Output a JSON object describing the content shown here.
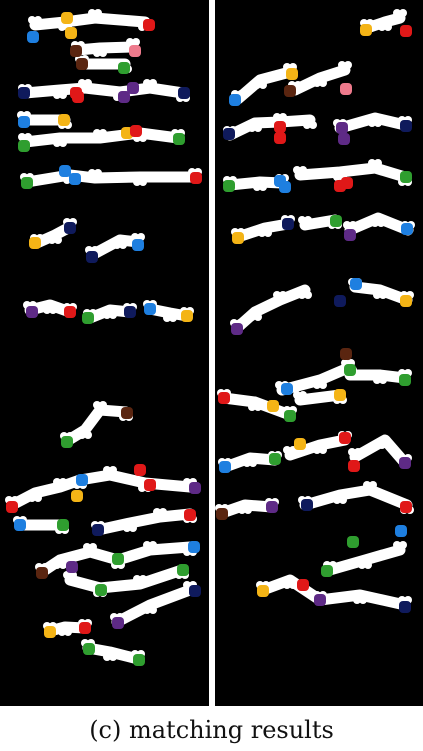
{
  "caption": "(c) matching results",
  "colors": {
    "background": "#000000",
    "blob": "#ffffff",
    "separator": "#ffffff",
    "markers": {
      "blue": "#1e7fe0",
      "orange": "#f4b416",
      "red": "#e01818",
      "green": "#2f9e2f",
      "navy": "#0f1a5c",
      "purple": "#5e2a86",
      "brown": "#5a2510",
      "pink": "#ee7a8c"
    }
  },
  "panels": [
    {
      "name": "left-panel",
      "blobs": [
        [
          [
            35,
            25
          ],
          [
            65,
            22
          ],
          [
            95,
            18
          ],
          [
            145,
            22
          ]
        ],
        [
          [
            78,
            50
          ],
          [
            100,
            48
          ],
          [
            133,
            47
          ]
        ],
        [
          [
            82,
            64
          ],
          [
            125,
            64
          ]
        ],
        [
          [
            25,
            93
          ],
          [
            60,
            90
          ],
          [
            85,
            88
          ],
          [
            120,
            92
          ],
          [
            150,
            88
          ],
          [
            183,
            93
          ]
        ],
        [
          [
            24,
            120
          ],
          [
            65,
            120
          ]
        ],
        [
          [
            25,
            142
          ],
          [
            60,
            138
          ],
          [
            100,
            138
          ],
          [
            140,
            133
          ],
          [
            178,
            138
          ]
        ],
        [
          [
            27,
            182
          ],
          [
            70,
            175
          ],
          [
            95,
            178
          ],
          [
            140,
            177
          ],
          [
            195,
            177
          ]
        ],
        [
          [
            37,
            243
          ],
          [
            55,
            235
          ],
          [
            70,
            227
          ]
        ],
        [
          [
            92,
            255
          ],
          [
            120,
            240
          ],
          [
            138,
            242
          ]
        ],
        [
          [
            30,
            310
          ],
          [
            50,
            305
          ],
          [
            70,
            312
          ]
        ],
        [
          [
            90,
            318
          ],
          [
            110,
            310
          ],
          [
            130,
            312
          ]
        ],
        [
          [
            150,
            309
          ],
          [
            170,
            313
          ],
          [
            187,
            316
          ]
        ],
        [
          [
            67,
            441
          ],
          [
            85,
            430
          ],
          [
            100,
            410
          ],
          [
            126,
            412
          ]
        ],
        [
          [
            12,
            505
          ],
          [
            35,
            493
          ],
          [
            60,
            487
          ],
          [
            80,
            480
          ],
          [
            110,
            475
          ],
          [
            145,
            483
          ],
          [
            190,
            487
          ]
        ],
        [
          [
            20,
            525
          ],
          [
            62,
            525
          ]
        ],
        [
          [
            98,
            530
          ],
          [
            130,
            523
          ],
          [
            160,
            517
          ],
          [
            190,
            514
          ]
        ],
        [
          [
            42,
            572
          ],
          [
            60,
            560
          ],
          [
            90,
            552
          ],
          [
            118,
            560
          ],
          [
            150,
            550
          ],
          [
            190,
            547
          ]
        ],
        [
          [
            70,
            580
          ],
          [
            100,
            588
          ],
          [
            140,
            584
          ],
          [
            182,
            570
          ]
        ],
        [
          [
            117,
            622
          ],
          [
            150,
            605
          ],
          [
            190,
            590
          ]
        ],
        [
          [
            50,
            631
          ],
          [
            65,
            627
          ],
          [
            85,
            628
          ]
        ],
        [
          [
            88,
            648
          ],
          [
            110,
            652
          ],
          [
            138,
            659
          ]
        ]
      ],
      "markers": [
        [
          "orange",
          67,
          18
        ],
        [
          "red",
          149,
          25
        ],
        [
          "blue",
          33,
          37
        ],
        [
          "orange",
          71,
          33
        ],
        [
          "brown",
          76,
          51
        ],
        [
          "pink",
          135,
          51
        ],
        [
          "brown",
          82,
          64
        ],
        [
          "green",
          124,
          68
        ],
        [
          "navy",
          24,
          93
        ],
        [
          "red",
          76,
          93
        ],
        [
          "red",
          78,
          97
        ],
        [
          "purple",
          133,
          88
        ],
        [
          "purple",
          124,
          97
        ],
        [
          "navy",
          184,
          93
        ],
        [
          "blue",
          24,
          122
        ],
        [
          "orange",
          64,
          120
        ],
        [
          "green",
          24,
          146
        ],
        [
          "orange",
          127,
          133
        ],
        [
          "red",
          136,
          131
        ],
        [
          "green",
          179,
          139
        ],
        [
          "green",
          27,
          183
        ],
        [
          "blue",
          65,
          171
        ],
        [
          "blue",
          75,
          179
        ],
        [
          "red",
          196,
          178
        ],
        [
          "orange",
          35,
          243
        ],
        [
          "navy",
          70,
          228
        ],
        [
          "navy",
          92,
          257
        ],
        [
          "blue",
          138,
          245
        ],
        [
          "purple",
          32,
          312
        ],
        [
          "red",
          70,
          312
        ],
        [
          "green",
          88,
          318
        ],
        [
          "navy",
          130,
          312
        ],
        [
          "blue",
          150,
          309
        ],
        [
          "orange",
          187,
          316
        ],
        [
          "brown",
          127,
          413
        ],
        [
          "green",
          67,
          442
        ],
        [
          "red",
          140,
          470
        ],
        [
          "blue",
          82,
          480
        ],
        [
          "red",
          150,
          485
        ],
        [
          "purple",
          195,
          488
        ],
        [
          "orange",
          77,
          496
        ],
        [
          "red",
          12,
          507
        ],
        [
          "blue",
          20,
          525
        ],
        [
          "green",
          63,
          525
        ],
        [
          "navy",
          98,
          530
        ],
        [
          "red",
          190,
          515
        ],
        [
          "blue",
          194,
          547
        ],
        [
          "green",
          118,
          559
        ],
        [
          "purple",
          72,
          567
        ],
        [
          "brown",
          42,
          573
        ],
        [
          "green",
          183,
          570
        ],
        [
          "green",
          101,
          590
        ],
        [
          "navy",
          195,
          591
        ],
        [
          "purple",
          118,
          623
        ],
        [
          "red",
          85,
          628
        ],
        [
          "orange",
          50,
          632
        ],
        [
          "green",
          89,
          649
        ],
        [
          "green",
          139,
          660
        ]
      ]
    },
    {
      "name": "right-panel",
      "blobs": [
        [
          [
            367,
            28
          ],
          [
            385,
            22
          ],
          [
            400,
            18
          ]
        ],
        [
          [
            238,
            99
          ],
          [
            260,
            80
          ],
          [
            290,
            72
          ]
        ],
        [
          [
            295,
            90
          ],
          [
            320,
            78
          ],
          [
            345,
            70
          ]
        ],
        [
          [
            230,
            135
          ],
          [
            255,
            123
          ],
          [
            280,
            122
          ],
          [
            310,
            120
          ]
        ],
        [
          [
            340,
            128
          ],
          [
            375,
            118
          ],
          [
            405,
            125
          ]
        ],
        [
          [
            230,
            185
          ],
          [
            260,
            182
          ],
          [
            282,
            183
          ]
        ],
        [
          [
            300,
            175
          ],
          [
            340,
            172
          ],
          [
            375,
            168
          ],
          [
            405,
            177
          ]
        ],
        [
          [
            238,
            237
          ],
          [
            265,
            228
          ],
          [
            288,
            224
          ]
        ],
        [
          [
            305,
            225
          ],
          [
            335,
            220
          ]
        ],
        [
          [
            350,
            230
          ],
          [
            378,
            218
          ],
          [
            408,
            230
          ]
        ],
        [
          [
            237,
            328
          ],
          [
            255,
            312
          ],
          [
            280,
            300
          ],
          [
            305,
            290
          ]
        ],
        [
          [
            355,
            287
          ],
          [
            380,
            290
          ],
          [
            407,
            300
          ]
        ],
        [
          [
            282,
            390
          ],
          [
            320,
            380
          ],
          [
            348,
            368
          ]
        ],
        [
          [
            350,
            375
          ],
          [
            380,
            375
          ],
          [
            405,
            378
          ]
        ],
        [
          [
            224,
            398
          ],
          [
            255,
            402
          ],
          [
            290,
            415
          ]
        ],
        [
          [
            300,
            400
          ],
          [
            340,
            395
          ]
        ],
        [
          [
            225,
            467
          ],
          [
            250,
            458
          ],
          [
            275,
            460
          ]
        ],
        [
          [
            290,
            455
          ],
          [
            320,
            445
          ],
          [
            345,
            440
          ]
        ],
        [
          [
            355,
            457
          ],
          [
            385,
            440
          ],
          [
            405,
            463
          ]
        ],
        [
          [
            222,
            513
          ],
          [
            245,
            505
          ],
          [
            272,
            507
          ]
        ],
        [
          [
            305,
            505
          ],
          [
            340,
            495
          ],
          [
            370,
            490
          ],
          [
            407,
            505
          ]
        ],
        [
          [
            330,
            570
          ],
          [
            365,
            560
          ],
          [
            400,
            550
          ]
        ],
        [
          [
            263,
            590
          ],
          [
            290,
            580
          ],
          [
            320,
            600
          ],
          [
            360,
            595
          ],
          [
            405,
            605
          ]
        ]
      ],
      "markers": [
        [
          "orange",
          366,
          30
        ],
        [
          "red",
          406,
          31
        ],
        [
          "orange",
          292,
          74
        ],
        [
          "brown",
          290,
          91
        ],
        [
          "pink",
          346,
          89
        ],
        [
          "blue",
          235,
          100
        ],
        [
          "red",
          280,
          127
        ],
        [
          "red",
          280,
          138
        ],
        [
          "purple",
          342,
          128
        ],
        [
          "purple",
          344,
          139
        ],
        [
          "navy",
          229,
          134
        ],
        [
          "navy",
          406,
          126
        ],
        [
          "blue",
          280,
          181
        ],
        [
          "blue",
          285,
          187
        ],
        [
          "red",
          340,
          186
        ],
        [
          "red",
          347,
          183
        ],
        [
          "green",
          229,
          186
        ],
        [
          "green",
          406,
          177
        ],
        [
          "navy",
          288,
          224
        ],
        [
          "green",
          336,
          221
        ],
        [
          "orange",
          238,
          238
        ],
        [
          "purple",
          350,
          235
        ],
        [
          "blue",
          407,
          229
        ],
        [
          "blue",
          356,
          284
        ],
        [
          "navy",
          340,
          301
        ],
        [
          "orange",
          406,
          301
        ],
        [
          "purple",
          237,
          329
        ],
        [
          "brown",
          346,
          354
        ],
        [
          "green",
          350,
          370
        ],
        [
          "green",
          405,
          380
        ],
        [
          "blue",
          287,
          389
        ],
        [
          "orange",
          340,
          395
        ],
        [
          "red",
          224,
          398
        ],
        [
          "orange",
          273,
          406
        ],
        [
          "green",
          290,
          416
        ],
        [
          "red",
          345,
          438
        ],
        [
          "orange",
          300,
          444
        ],
        [
          "blue",
          225,
          467
        ],
        [
          "green",
          275,
          459
        ],
        [
          "red",
          354,
          466
        ],
        [
          "purple",
          405,
          463
        ],
        [
          "navy",
          307,
          505
        ],
        [
          "purple",
          272,
          507
        ],
        [
          "red",
          406,
          507
        ],
        [
          "brown",
          222,
          514
        ],
        [
          "blue",
          401,
          531
        ],
        [
          "green",
          353,
          542
        ],
        [
          "green",
          327,
          571
        ],
        [
          "red",
          303,
          585
        ],
        [
          "orange",
          263,
          591
        ],
        [
          "purple",
          320,
          600
        ],
        [
          "navy",
          405,
          607
        ]
      ]
    }
  ]
}
